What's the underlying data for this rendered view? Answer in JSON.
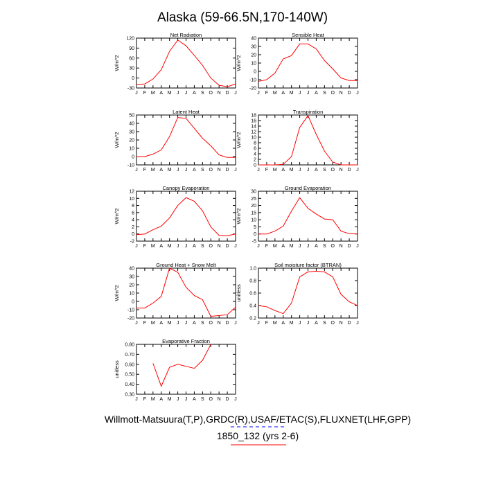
{
  "figure": {
    "title": "Alaska (59-66.5N,170-140W)",
    "footer_line1": "Willmott-Matsuura(T,P),GRDC(R),USAF/ETAC(S),FLUXNET(LHF,GPP)",
    "footer_line2": "1850_132 (yrs 2-6)",
    "footer_line2_color": "#ff0000",
    "series_color": "#ff0000",
    "legend_dash_color": "#0000ff"
  },
  "chart_data": [
    {
      "type": "line",
      "title": "Net Radiation",
      "ylabel": "W/m^2",
      "categories": [
        "J",
        "F",
        "M",
        "A",
        "M",
        "J",
        "J",
        "A",
        "S",
        "O",
        "N",
        "D",
        "J"
      ],
      "series": [
        {
          "name": "1850_132 (yrs 2-6)",
          "values": [
            -19,
            -18,
            -3,
            25,
            80,
            114,
            97,
            68,
            38,
            0,
            -22,
            -26,
            -18
          ]
        }
      ],
      "ylim": [
        -30,
        120
      ],
      "yticks": [
        -30,
        0,
        30,
        60,
        90,
        120
      ],
      "ytick_labels": [
        "-30",
        "0",
        "30",
        "60",
        "90",
        "120"
      ]
    },
    {
      "type": "line",
      "title": "Sensible Heat",
      "ylabel": "W/m^2",
      "categories": [
        "J",
        "F",
        "M",
        "A",
        "M",
        "J",
        "J",
        "A",
        "S",
        "O",
        "N",
        "D",
        "J"
      ],
      "series": [
        {
          "name": "1850_132 (yrs 2-6)",
          "values": [
            -12,
            -10,
            -2,
            15,
            19,
            33,
            33,
            27,
            13,
            3,
            -8,
            -11,
            -11
          ]
        }
      ],
      "ylim": [
        -20,
        40
      ],
      "yticks": [
        -20,
        -10,
        0,
        10,
        20,
        30,
        40
      ],
      "ytick_labels": [
        "-20",
        "-10",
        "0",
        "10",
        "20",
        "30",
        "40"
      ]
    },
    {
      "type": "line",
      "title": "Latent Heat",
      "ylabel": "W/m^2",
      "categories": [
        "J",
        "F",
        "M",
        "A",
        "M",
        "J",
        "J",
        "A",
        "S",
        "O",
        "N",
        "D",
        "J"
      ],
      "series": [
        {
          "name": "1850_132 (yrs 2-6)",
          "values": [
            0,
            0,
            3,
            8,
            24,
            47,
            46,
            34,
            22,
            13,
            2,
            -1,
            -1
          ]
        }
      ],
      "ylim": [
        -10,
        50
      ],
      "yticks": [
        -10,
        0,
        10,
        20,
        30,
        40,
        50
      ],
      "ytick_labels": [
        "-10",
        "0",
        "10",
        "20",
        "30",
        "40",
        "50"
      ]
    },
    {
      "type": "line",
      "title": "Transpiration",
      "ylabel": "W/m^2",
      "categories": [
        "J",
        "F",
        "M",
        "A",
        "M",
        "J",
        "J",
        "A",
        "S",
        "O",
        "N",
        "D",
        "J"
      ],
      "series": [
        {
          "name": "1850_132 (yrs 2-6)",
          "values": [
            0,
            0,
            0,
            0.2,
            3,
            13.5,
            17.8,
            11,
            5,
            1,
            0,
            0,
            0
          ]
        }
      ],
      "ylim": [
        0,
        18
      ],
      "yticks": [
        0,
        2,
        4,
        6,
        8,
        10,
        12,
        14,
        16,
        18
      ],
      "ytick_labels": [
        "0",
        "2",
        "4",
        "6",
        "8",
        "10",
        "12",
        "14",
        "16",
        "18"
      ]
    },
    {
      "type": "line",
      "title": "Canopy Evaporation",
      "ylabel": "W/m^2",
      "categories": [
        "J",
        "F",
        "M",
        "A",
        "M",
        "J",
        "J",
        "A",
        "S",
        "O",
        "N",
        "D",
        "J"
      ],
      "series": [
        {
          "name": "1850_132 (yrs 2-6)",
          "values": [
            -0.2,
            0,
            1.2,
            2.2,
            4.5,
            8,
            10.2,
            9.2,
            6.5,
            2,
            -0.4,
            -0.5,
            0
          ]
        }
      ],
      "ylim": [
        -2,
        12
      ],
      "yticks": [
        -2,
        0,
        2,
        4,
        6,
        8,
        10,
        12
      ],
      "ytick_labels": [
        "-2",
        "0",
        "2",
        "4",
        "6",
        "8",
        "10",
        "12"
      ]
    },
    {
      "type": "line",
      "title": "Ground Evaporation",
      "ylabel": "W/m^2",
      "categories": [
        "J",
        "F",
        "M",
        "A",
        "M",
        "J",
        "J",
        "A",
        "S",
        "O",
        "N",
        "D",
        "J"
      ],
      "series": [
        {
          "name": "1850_132 (yrs 2-6)",
          "values": [
            0,
            0,
            2,
            5.5,
            16,
            25.5,
            18,
            14,
            10.5,
            10,
            2,
            0.2,
            0
          ]
        }
      ],
      "ylim": [
        -5,
        30
      ],
      "yticks": [
        -5,
        0,
        5,
        10,
        15,
        20,
        25,
        30
      ],
      "ytick_labels": [
        "-5",
        "0",
        "5",
        "10",
        "15",
        "20",
        "25",
        "30"
      ]
    },
    {
      "type": "line",
      "title": "Ground Heat + Snow Melt",
      "ylabel": "W/m^2",
      "categories": [
        "J",
        "F",
        "M",
        "A",
        "M",
        "J",
        "J",
        "A",
        "S",
        "O",
        "N",
        "D",
        "J"
      ],
      "series": [
        {
          "name": "1850_132 (yrs 2-6)",
          "values": [
            -8,
            -8,
            -2,
            6,
            40,
            35,
            17,
            7,
            2,
            -18,
            -17,
            -16,
            -7
          ]
        }
      ],
      "ylim": [
        -20,
        40
      ],
      "yticks": [
        -20,
        -10,
        0,
        10,
        20,
        30,
        40
      ],
      "ytick_labels": [
        "-20",
        "-10",
        "0",
        "10",
        "20",
        "30",
        "40"
      ]
    },
    {
      "type": "line",
      "title": "Soil moisture factor (BTRAN)",
      "ylabel": "unitless",
      "categories": [
        "J",
        "F",
        "M",
        "A",
        "M",
        "J",
        "J",
        "A",
        "S",
        "O",
        "N",
        "D",
        "J"
      ],
      "series": [
        {
          "name": "1850_132 (yrs 2-6)",
          "values": [
            0.4,
            0.38,
            0.32,
            0.27,
            0.44,
            0.86,
            0.94,
            0.95,
            0.94,
            0.86,
            0.58,
            0.46,
            0.4
          ]
        }
      ],
      "ylim": [
        0.2,
        1.0
      ],
      "yticks": [
        0.2,
        0.4,
        0.6,
        0.8,
        1.0
      ],
      "ytick_labels": [
        "0.2",
        "0.4",
        "0.6",
        "0.8",
        "1.0"
      ]
    },
    {
      "type": "line",
      "title": "Evaporative Fraction",
      "ylabel": "unitless",
      "categories": [
        "J",
        "F",
        "M",
        "A",
        "M",
        "J",
        "J",
        "A",
        "S",
        "O",
        "N",
        "D",
        "J"
      ],
      "series": [
        {
          "name": "1850_132 (yrs 2-6)",
          "values": [
            null,
            null,
            0.61,
            0.38,
            0.57,
            0.6,
            0.58,
            0.56,
            0.64,
            0.8,
            null,
            null,
            null
          ]
        }
      ],
      "ylim": [
        0.3,
        0.8
      ],
      "yticks": [
        0.3,
        0.4,
        0.5,
        0.6,
        0.7,
        0.8
      ],
      "ytick_labels": [
        "0.30",
        "0.40",
        "0.50",
        "0.60",
        "0.70",
        "0.80"
      ]
    }
  ]
}
